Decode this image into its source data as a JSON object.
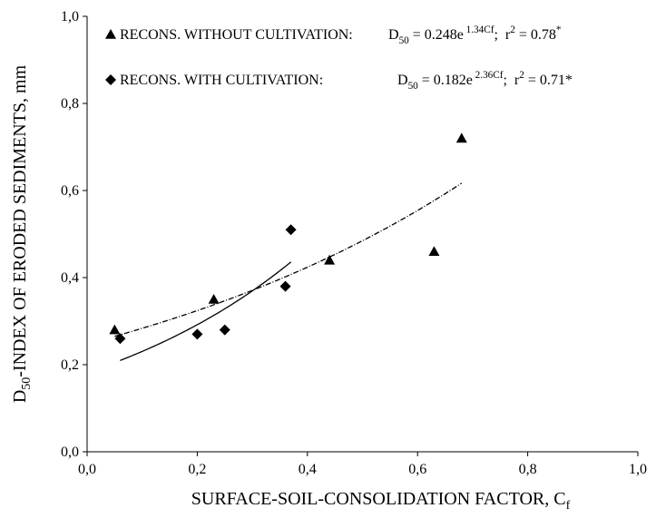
{
  "chart_data": {
    "type": "scatter",
    "x_label": [
      {
        "text": "SURFACE-SOIL-CONSOLIDATION FACTOR, C"
      },
      {
        "text": "f",
        "sub": true
      }
    ],
    "y_label": [
      {
        "text": "D"
      },
      {
        "text": "50",
        "sub": true
      },
      {
        "text": "-INDEX OF ERODED SEDIMENTS, mm"
      }
    ],
    "xlim": [
      0,
      1
    ],
    "ylim": [
      0,
      1
    ],
    "xticks": [
      {
        "value": 0,
        "label": "0,0"
      },
      {
        "value": 0.2,
        "label": "0,2"
      },
      {
        "value": 0.4,
        "label": "0,4"
      },
      {
        "value": 0.6,
        "label": "0,6"
      },
      {
        "value": 0.8,
        "label": "0,8"
      },
      {
        "value": 1,
        "label": "1,0"
      }
    ],
    "yticks": [
      {
        "value": 0,
        "label": "0,0"
      },
      {
        "value": 0.2,
        "label": "0,2"
      },
      {
        "value": 0.4,
        "label": "0,4"
      },
      {
        "value": 0.6,
        "label": "0,6"
      },
      {
        "value": 0.8,
        "label": "0,8"
      },
      {
        "value": 1,
        "label": "1,0"
      }
    ],
    "series": [
      {
        "name": "RECONS. WITHOUT CULTIVATION:",
        "color": "#000000",
        "marker": "triangle",
        "line_style": "dashdot",
        "x": [
          0.05,
          0.23,
          0.44,
          0.63,
          0.68
        ],
        "values": [
          0.28,
          0.35,
          0.44,
          0.46,
          0.72
        ],
        "fit": {
          "a": 0.248,
          "b": 1.34
        },
        "equation": [
          {
            "text": "D"
          },
          {
            "text": "50",
            "sub": true
          },
          {
            "text": " = 0.248e"
          },
          {
            "text": " 1.34Cf",
            "sup": true
          },
          {
            "text": ";  r"
          },
          {
            "text": "2",
            "sup": true
          },
          {
            "text": " = 0.78"
          },
          {
            "text": "*",
            "sup": true
          }
        ]
      },
      {
        "name": "RECONS. WITH CULTIVATION:",
        "color": "#000000",
        "marker": "diamond",
        "line_style": "solid",
        "x": [
          0.06,
          0.2,
          0.25,
          0.36,
          0.37
        ],
        "values": [
          0.26,
          0.27,
          0.28,
          0.38,
          0.51
        ],
        "fit": {
          "a": 0.182,
          "b": 2.36
        },
        "equation": [
          {
            "text": "D"
          },
          {
            "text": "50",
            "sub": true
          },
          {
            "text": " = 0.182e"
          },
          {
            "text": " 2.36Cf",
            "sup": true
          },
          {
            "text": ";  r"
          },
          {
            "text": "2",
            "sup": true
          },
          {
            "text": " = 0.71*"
          }
        ]
      }
    ]
  }
}
